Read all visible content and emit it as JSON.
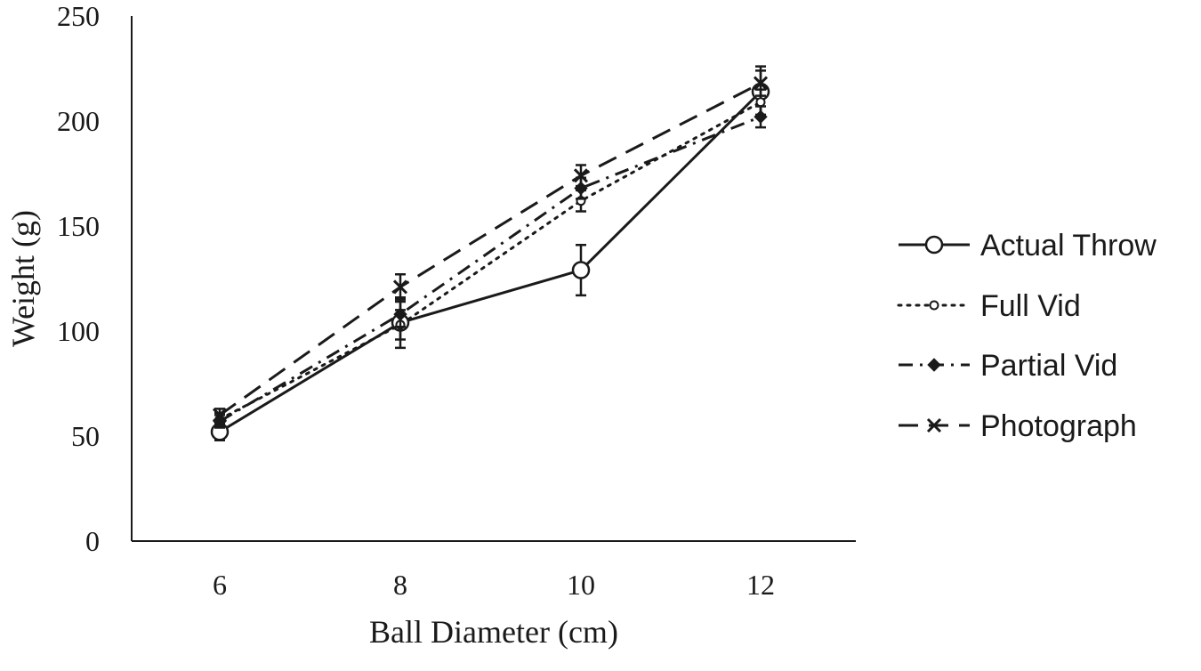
{
  "chart_data": {
    "type": "line",
    "title": "",
    "xlabel": "Ball Diameter (cm)",
    "ylabel": "Weight (g)",
    "categories": [
      "6",
      "8",
      "10",
      "12"
    ],
    "x": [
      6,
      8,
      10,
      12
    ],
    "ylim": [
      0,
      250
    ],
    "yticks": [
      "0",
      "50",
      "100",
      "150",
      "200",
      "250"
    ],
    "grid": false,
    "legend_position": "right",
    "series": [
      {
        "name": "Actual Throw",
        "values": [
          52,
          104,
          129,
          214
        ],
        "error": [
          4,
          12,
          12,
          12
        ],
        "line_style": "solid",
        "marker": "open-circle",
        "color": "#1a1a1a"
      },
      {
        "name": "Full Vid",
        "values": [
          58,
          103,
          162,
          209
        ],
        "error": [
          3,
          7,
          5,
          6
        ],
        "line_style": "dotted",
        "marker": "small-dot",
        "color": "#1a1a1a"
      },
      {
        "name": "Partial Vid",
        "values": [
          57,
          108,
          168,
          202
        ],
        "error": [
          3,
          6,
          5,
          5
        ],
        "line_style": "dash-dot",
        "marker": "diamond",
        "color": "#1a1a1a"
      },
      {
        "name": "Photograph",
        "values": [
          60,
          121,
          174,
          218
        ],
        "error": [
          3,
          6,
          5,
          6
        ],
        "line_style": "dashed",
        "marker": "x",
        "color": "#1a1a1a"
      }
    ]
  }
}
